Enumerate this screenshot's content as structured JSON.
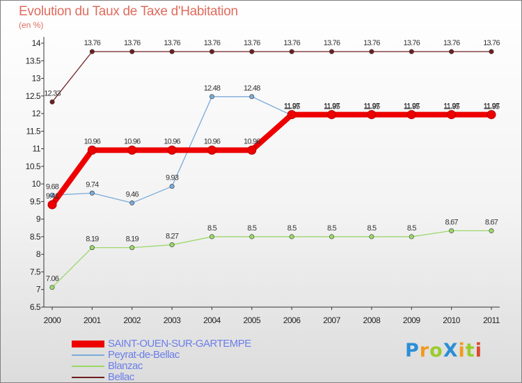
{
  "title": "Evolution du Taux de Taxe d'Habitation",
  "unit": "(en %)",
  "brand": {
    "text": "ProXiti",
    "letters": [
      {
        "ch": "P",
        "color": "#2a8fd6"
      },
      {
        "ch": "r",
        "color": "#f39a1c"
      },
      {
        "ch": "o",
        "color": "#9bcc2a"
      },
      {
        "ch": "X",
        "color": "#2a8fd6"
      },
      {
        "ch": "i",
        "color": "#f39a1c"
      },
      {
        "ch": "t",
        "color": "#9bcc2a"
      },
      {
        "ch": "i",
        "color": "#e0462b"
      }
    ]
  },
  "chart_data": {
    "type": "line",
    "x": [
      "2000",
      "2001",
      "2002",
      "2003",
      "2004",
      "2005",
      "2006",
      "2007",
      "2008",
      "2009",
      "2010",
      "2011"
    ],
    "ylim": [
      6.5,
      14
    ],
    "yticks": [
      "6.5",
      "7",
      "7.5",
      "8",
      "8.5",
      "9",
      "9.5",
      "10",
      "10.5",
      "11",
      "11.5",
      "12",
      "12.5",
      "13",
      "13.5",
      "14"
    ],
    "grid": false,
    "legend_position": "bottom-left",
    "series": [
      {
        "name": "Bellac",
        "color": "#6e1f1f",
        "values": [
          12.33,
          13.76,
          13.76,
          13.76,
          13.76,
          13.76,
          13.76,
          13.76,
          13.76,
          13.76,
          13.76,
          13.76
        ],
        "labels": [
          "12.33",
          "13.76",
          "13.76",
          "13.76",
          "13.76",
          "13.76",
          "13.76",
          "13.76",
          "13.76",
          "13.76",
          "13.76",
          "13.76"
        ]
      },
      {
        "name": "Blanzac",
        "color": "#9bd86a",
        "values": [
          7.06,
          8.19,
          8.19,
          8.27,
          8.5,
          8.5,
          8.5,
          8.5,
          8.5,
          8.5,
          8.67,
          8.67
        ],
        "labels": [
          "7.06",
          "8.19",
          "8.19",
          "8.27",
          "8.5",
          "8.5",
          "8.5",
          "8.5",
          "8.5",
          "8.5",
          "8.67",
          "8.67"
        ]
      },
      {
        "name": "Peyrat-de-Bellac",
        "color": "#7aaad8",
        "values": [
          9.68,
          9.74,
          9.46,
          9.93,
          12.48,
          12.48,
          11.95,
          11.95,
          11.95,
          11.95,
          11.95,
          11.95
        ],
        "labels": [
          "9.68",
          "9.74",
          "9.46",
          "9.93",
          "12.48",
          "12.48",
          "11.95",
          "11.95",
          "11.95",
          "11.95",
          "11.95",
          "11.95"
        ]
      },
      {
        "name": "SAINT-OUEN-SUR-GARTEMPE",
        "color": "#ee0000",
        "values": [
          9.41,
          10.96,
          10.96,
          10.96,
          10.96,
          10.96,
          11.97,
          11.97,
          11.97,
          11.97,
          11.97,
          11.97
        ],
        "labels": [
          "9.41",
          "10.96",
          "10.96",
          "10.96",
          "10.96",
          "10.96",
          "11.97",
          "11.97",
          "11.97",
          "11.97",
          "11.97",
          "11.97"
        ]
      }
    ],
    "legend": [
      "SAINT-OUEN-SUR-GARTEMPE",
      "Peyrat-de-Bellac",
      "Blanzac",
      "Bellac"
    ]
  }
}
